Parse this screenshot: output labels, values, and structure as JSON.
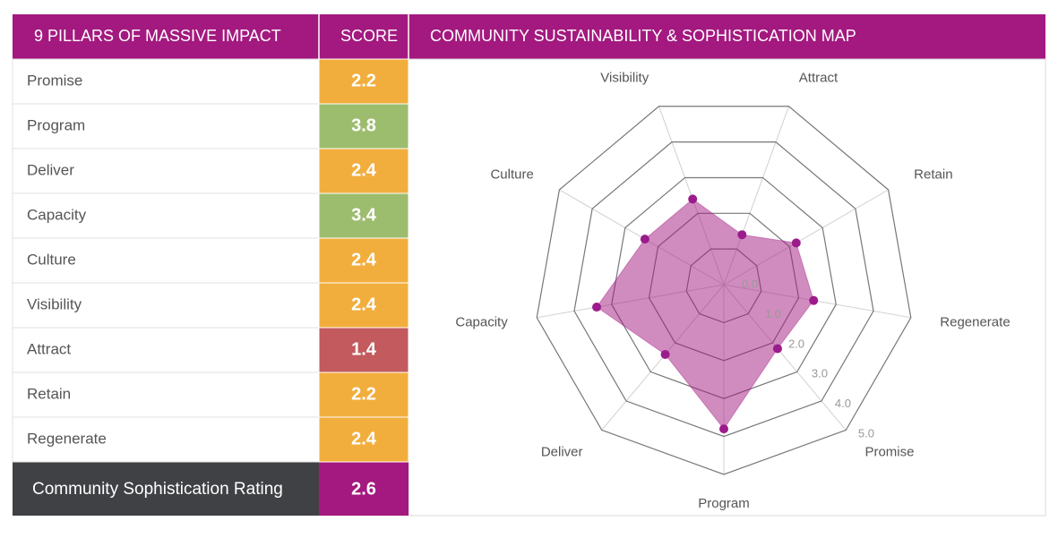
{
  "table": {
    "header_name": "9 PILLARS OF MASSIVE IMPACT",
    "header_score": "SCORE",
    "score_colors": [
      "#f2ae3d",
      "#9dbd6e",
      "#f2ae3d",
      "#9dbd6e",
      "#f2ae3d",
      "#f2ae3d",
      "#c25a5e",
      "#f2ae3d",
      "#f2ae3d"
    ],
    "footer_label": "Community Sophistication Rating",
    "footer_value": 2.6
  },
  "chart_data": {
    "type": "radar",
    "title": "COMMUNITY SUSTAINABILITY & SOPHISTICATION MAP",
    "categories": [
      "Promise",
      "Program",
      "Deliver",
      "Capacity",
      "Culture",
      "Visibility",
      "Attract",
      "Retain",
      "Regenerate"
    ],
    "series": [
      {
        "name": "Score",
        "color": "#a3197f",
        "values": [
          2.2,
          3.8,
          2.4,
          3.4,
          2.4,
          2.4,
          1.4,
          2.2,
          2.4
        ]
      }
    ],
    "ylim": [
      0,
      5
    ],
    "yticks": [
      {
        "value": 0,
        "label": "0.0"
      },
      {
        "value": 1,
        "label": "1.0"
      },
      {
        "value": 2,
        "label": "2.0"
      },
      {
        "value": 3,
        "label": "3.0"
      },
      {
        "value": 4,
        "label": "4.0"
      },
      {
        "value": 5,
        "label": "5.0"
      }
    ]
  }
}
